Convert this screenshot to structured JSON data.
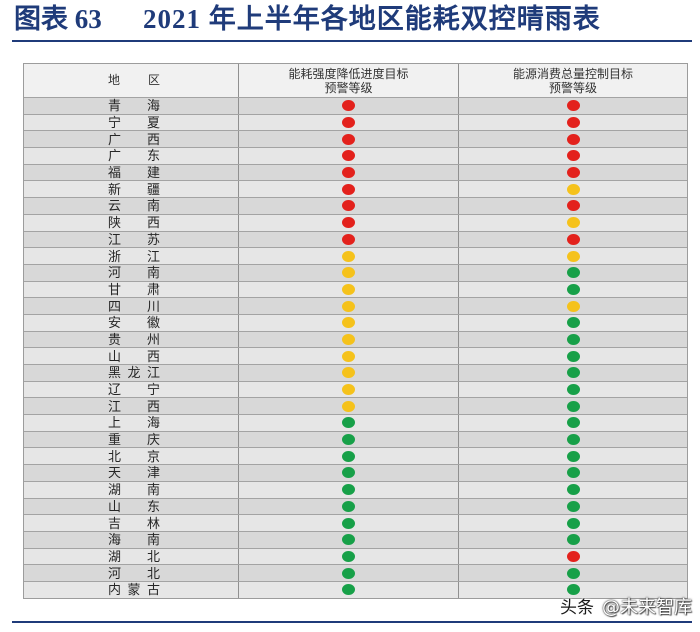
{
  "chart_data": {
    "type": "table",
    "figure_label": "图表 63",
    "title": "2021 年上半年各地区能耗双控晴雨表",
    "columns": [
      {
        "lines": [
          "地 区"
        ]
      },
      {
        "lines": [
          "能耗强度降低进度目标",
          "预警等级"
        ]
      },
      {
        "lines": [
          "能源消费总量控制目标",
          "预警等级"
        ]
      }
    ],
    "rows": [
      {
        "region": "青 海",
        "intensity": "red",
        "total": "red"
      },
      {
        "region": "宁 夏",
        "intensity": "red",
        "total": "red"
      },
      {
        "region": "广 西",
        "intensity": "red",
        "total": "red"
      },
      {
        "region": "广 东",
        "intensity": "red",
        "total": "red"
      },
      {
        "region": "福 建",
        "intensity": "red",
        "total": "red"
      },
      {
        "region": "新 疆",
        "intensity": "red",
        "total": "yellow"
      },
      {
        "region": "云 南",
        "intensity": "red",
        "total": "red"
      },
      {
        "region": "陕 西",
        "intensity": "red",
        "total": "yellow"
      },
      {
        "region": "江 苏",
        "intensity": "red",
        "total": "red"
      },
      {
        "region": "浙 江",
        "intensity": "yellow",
        "total": "yellow"
      },
      {
        "region": "河 南",
        "intensity": "yellow",
        "total": "green"
      },
      {
        "region": "甘 肃",
        "intensity": "yellow",
        "total": "green"
      },
      {
        "region": "四 川",
        "intensity": "yellow",
        "total": "yellow"
      },
      {
        "region": "安 徽",
        "intensity": "yellow",
        "total": "green"
      },
      {
        "region": "贵 州",
        "intensity": "yellow",
        "total": "green"
      },
      {
        "region": "山 西",
        "intensity": "yellow",
        "total": "green"
      },
      {
        "region": "黑龙江",
        "intensity": "yellow",
        "total": "green"
      },
      {
        "region": "辽 宁",
        "intensity": "yellow",
        "total": "green"
      },
      {
        "region": "江 西",
        "intensity": "yellow",
        "total": "green"
      },
      {
        "region": "上 海",
        "intensity": "green",
        "total": "green"
      },
      {
        "region": "重 庆",
        "intensity": "green",
        "total": "green"
      },
      {
        "region": "北 京",
        "intensity": "green",
        "total": "green"
      },
      {
        "region": "天 津",
        "intensity": "green",
        "total": "green"
      },
      {
        "region": "湖 南",
        "intensity": "green",
        "total": "green"
      },
      {
        "region": "山 东",
        "intensity": "green",
        "total": "green"
      },
      {
        "region": "吉 林",
        "intensity": "green",
        "total": "green"
      },
      {
        "region": "海 南",
        "intensity": "green",
        "total": "green"
      },
      {
        "region": "湖 北",
        "intensity": "green",
        "total": "red"
      },
      {
        "region": "河 北",
        "intensity": "green",
        "total": "green"
      },
      {
        "region": "内蒙古",
        "intensity": "green",
        "total": "green"
      }
    ]
  },
  "colors": {
    "title": "#1f3b7a",
    "red": "#e3211c",
    "yellow": "#f5c21b",
    "green": "#17a048"
  },
  "watermark": {
    "source": "头条",
    "account": "@未来智库"
  }
}
